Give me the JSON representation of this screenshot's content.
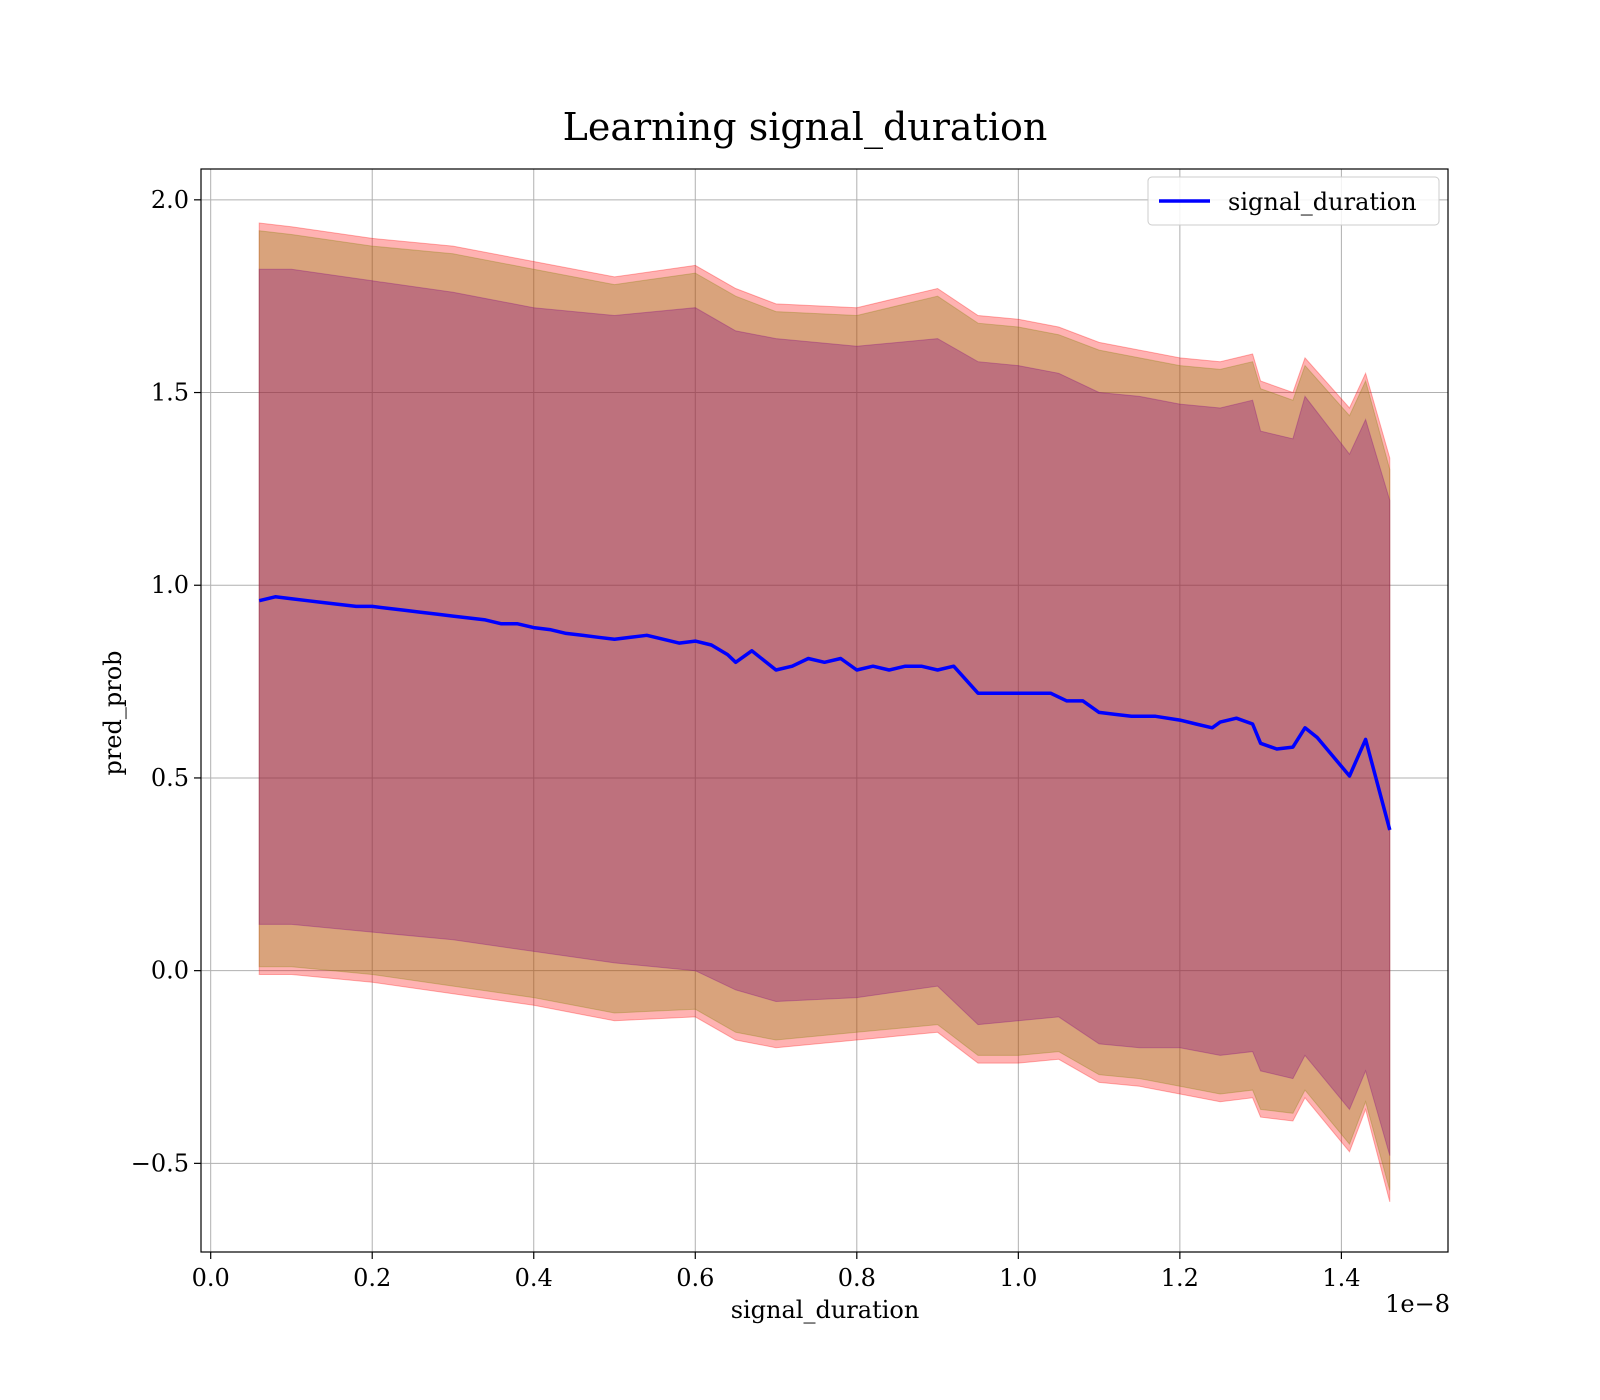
{
  "chart_data": {
    "type": "line",
    "title": "Learning signal_duration",
    "xlabel": "signal_duration",
    "ylabel": "pred_prob",
    "x_offset_label": "1e−8",
    "xlim": [
      -0.012,
      1.532
    ],
    "ylim": [
      -0.73,
      2.08
    ],
    "x_ticks": [
      0.0,
      0.2,
      0.4,
      0.6,
      0.8,
      1.0,
      1.2,
      1.4
    ],
    "x_tick_labels": [
      "0.0",
      "0.2",
      "0.4",
      "0.6",
      "0.8",
      "1.0",
      "1.2",
      "1.4"
    ],
    "y_ticks": [
      -0.5,
      0.0,
      0.5,
      1.0,
      1.5,
      2.0
    ],
    "y_tick_labels": [
      "−0.5",
      "0.0",
      "0.5",
      "1.0",
      "1.5",
      "2.0"
    ],
    "grid": true,
    "legend_position": "top-right",
    "series": [
      {
        "name": "signal_duration",
        "color": "#0000ff",
        "x": [
          0.06,
          0.08,
          0.1,
          0.12,
          0.14,
          0.16,
          0.18,
          0.2,
          0.22,
          0.24,
          0.26,
          0.28,
          0.3,
          0.32,
          0.34,
          0.36,
          0.38,
          0.4,
          0.42,
          0.44,
          0.46,
          0.48,
          0.5,
          0.52,
          0.54,
          0.56,
          0.58,
          0.6,
          0.62,
          0.64,
          0.65,
          0.67,
          0.7,
          0.72,
          0.74,
          0.76,
          0.78,
          0.8,
          0.82,
          0.84,
          0.86,
          0.88,
          0.9,
          0.92,
          0.95,
          0.97,
          1.0,
          1.02,
          1.04,
          1.06,
          1.08,
          1.1,
          1.12,
          1.14,
          1.17,
          1.2,
          1.22,
          1.24,
          1.25,
          1.27,
          1.29,
          1.3,
          1.32,
          1.34,
          1.355,
          1.37,
          1.41,
          1.43,
          1.46
        ],
        "values": [
          0.96,
          0.97,
          0.965,
          0.96,
          0.955,
          0.95,
          0.945,
          0.945,
          0.94,
          0.935,
          0.93,
          0.925,
          0.92,
          0.915,
          0.91,
          0.9,
          0.9,
          0.89,
          0.885,
          0.875,
          0.87,
          0.865,
          0.86,
          0.865,
          0.87,
          0.86,
          0.85,
          0.855,
          0.845,
          0.82,
          0.8,
          0.83,
          0.78,
          0.79,
          0.81,
          0.8,
          0.81,
          0.78,
          0.79,
          0.78,
          0.79,
          0.79,
          0.78,
          0.79,
          0.72,
          0.72,
          0.72,
          0.72,
          0.72,
          0.7,
          0.7,
          0.67,
          0.665,
          0.66,
          0.66,
          0.65,
          0.64,
          0.63,
          0.645,
          0.655,
          0.64,
          0.59,
          0.575,
          0.58,
          0.63,
          0.605,
          0.505,
          0.6,
          0.365
        ]
      }
    ],
    "bands": [
      {
        "color": "#ff0000",
        "opacity": 0.3,
        "x": [
          0.06,
          0.1,
          0.2,
          0.3,
          0.4,
          0.5,
          0.6,
          0.65,
          0.7,
          0.8,
          0.9,
          0.95,
          1.0,
          1.05,
          1.1,
          1.15,
          1.2,
          1.25,
          1.29,
          1.3,
          1.34,
          1.355,
          1.41,
          1.43,
          1.46
        ],
        "upper": [
          1.94,
          1.93,
          1.9,
          1.88,
          1.84,
          1.8,
          1.83,
          1.77,
          1.73,
          1.72,
          1.77,
          1.7,
          1.69,
          1.67,
          1.63,
          1.61,
          1.59,
          1.58,
          1.6,
          1.53,
          1.5,
          1.59,
          1.46,
          1.55,
          1.33
        ],
        "lower": [
          -0.01,
          -0.01,
          -0.03,
          -0.06,
          -0.09,
          -0.13,
          -0.12,
          -0.18,
          -0.2,
          -0.18,
          -0.16,
          -0.24,
          -0.24,
          -0.23,
          -0.29,
          -0.3,
          -0.32,
          -0.34,
          -0.33,
          -0.38,
          -0.39,
          -0.33,
          -0.47,
          -0.36,
          -0.6
        ]
      },
      {
        "color": "#808000",
        "opacity": 0.3,
        "x": [
          0.06,
          0.1,
          0.2,
          0.3,
          0.4,
          0.5,
          0.6,
          0.65,
          0.7,
          0.8,
          0.9,
          0.95,
          1.0,
          1.05,
          1.1,
          1.15,
          1.2,
          1.25,
          1.29,
          1.3,
          1.34,
          1.355,
          1.41,
          1.43,
          1.46
        ],
        "upper": [
          1.92,
          1.91,
          1.88,
          1.86,
          1.82,
          1.78,
          1.81,
          1.75,
          1.71,
          1.7,
          1.75,
          1.68,
          1.67,
          1.65,
          1.61,
          1.59,
          1.57,
          1.56,
          1.58,
          1.51,
          1.48,
          1.57,
          1.44,
          1.53,
          1.3
        ],
        "lower": [
          0.01,
          0.01,
          -0.01,
          -0.04,
          -0.07,
          -0.11,
          -0.1,
          -0.16,
          -0.18,
          -0.16,
          -0.14,
          -0.22,
          -0.22,
          -0.21,
          -0.27,
          -0.28,
          -0.3,
          -0.32,
          -0.31,
          -0.36,
          -0.37,
          -0.31,
          -0.45,
          -0.34,
          -0.57
        ]
      },
      {
        "color": "#800080",
        "opacity": 0.3,
        "x": [
          0.06,
          0.1,
          0.2,
          0.3,
          0.4,
          0.5,
          0.6,
          0.65,
          0.7,
          0.8,
          0.9,
          0.95,
          1.0,
          1.05,
          1.1,
          1.15,
          1.2,
          1.25,
          1.29,
          1.3,
          1.34,
          1.355,
          1.41,
          1.43,
          1.46
        ],
        "upper": [
          1.82,
          1.82,
          1.79,
          1.76,
          1.72,
          1.7,
          1.72,
          1.66,
          1.64,
          1.62,
          1.64,
          1.58,
          1.57,
          1.55,
          1.5,
          1.49,
          1.47,
          1.46,
          1.48,
          1.4,
          1.38,
          1.49,
          1.34,
          1.43,
          1.22
        ],
        "lower": [
          0.12,
          0.12,
          0.1,
          0.08,
          0.05,
          0.02,
          0.0,
          -0.05,
          -0.08,
          -0.07,
          -0.04,
          -0.14,
          -0.13,
          -0.12,
          -0.19,
          -0.2,
          -0.2,
          -0.22,
          -0.21,
          -0.26,
          -0.28,
          -0.22,
          -0.36,
          -0.26,
          -0.48
        ]
      }
    ]
  }
}
